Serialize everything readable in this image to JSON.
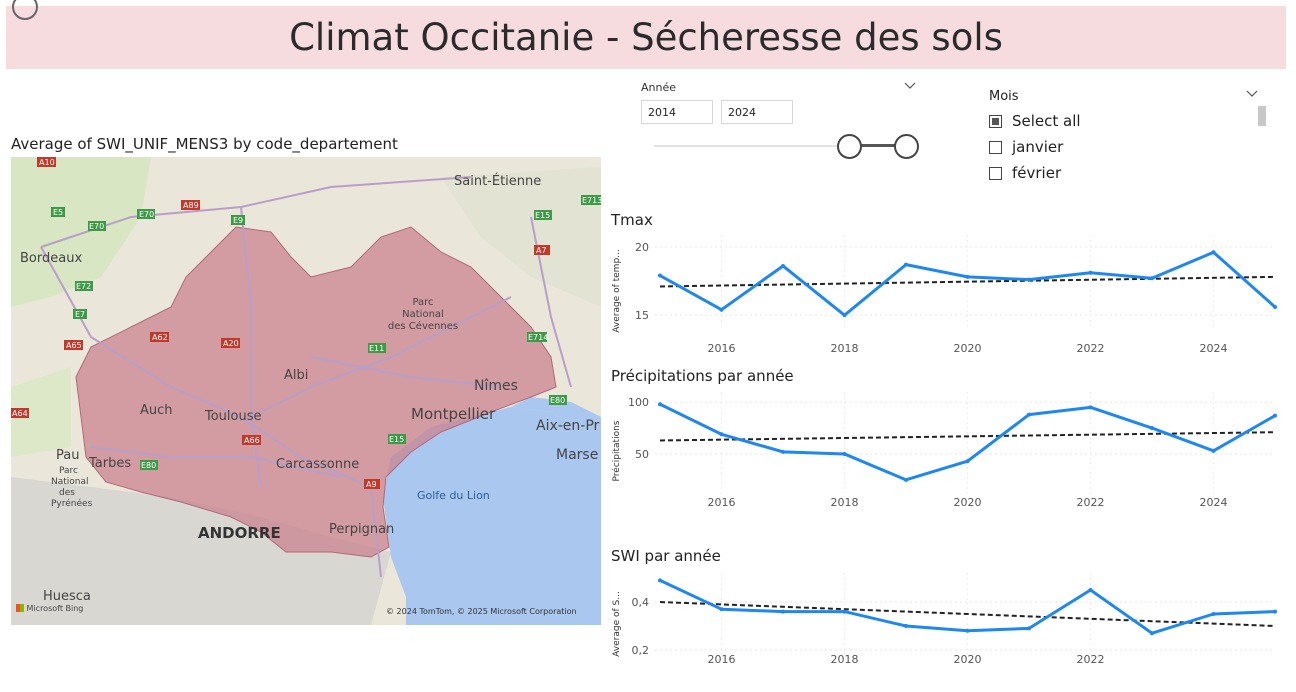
{
  "header": {
    "title": "Climat Occitanie - Sécheresse des sols"
  },
  "slicer_annee": {
    "label": "Année",
    "from": "2014",
    "to": "2024",
    "range": [
      2014,
      2024
    ]
  },
  "slicer_mois": {
    "label": "Mois",
    "items": [
      {
        "label": "Select all",
        "checked": true
      },
      {
        "label": "janvier",
        "checked": false
      },
      {
        "label": "février",
        "checked": false
      }
    ]
  },
  "map": {
    "title": "Average of SWI_UNIF_MENS3 by code_departement",
    "cities": [
      "Saint-Étienne",
      "Bordeaux",
      "Parc National des Cévennes",
      "Albi",
      "Nîmes",
      "Auch",
      "Toulouse",
      "Montpellier",
      "Aix-en-Pr",
      "Pau",
      "Tarbes",
      "Parc National des Pyrénées",
      "Carcassonne",
      "Marse",
      "Golfe du Lion",
      "ANDORRE",
      "Perpignan",
      "Huesca"
    ],
    "roads": [
      "A10",
      "E5",
      "E70",
      "A89",
      "E9",
      "E15",
      "E713",
      "A7",
      "E72",
      "E7",
      "A65",
      "A62",
      "A20",
      "E11",
      "E714",
      "E80",
      "A64",
      "A66",
      "E15",
      "A9",
      "E80"
    ],
    "brand": "Microsoft Bing",
    "copyright": "© 2024 TomTom, © 2025 Microsoft Corporation",
    "region_color": "#c9838f",
    "sea_color": "#a9c7ef"
  },
  "chart_data": [
    {
      "type": "line",
      "title": "Tmax",
      "ylabel": "Average of temp...",
      "x": [
        2015,
        2016,
        2017,
        2018,
        2019,
        2020,
        2021,
        2022,
        2023,
        2024,
        2025
      ],
      "series": [
        {
          "values": [
            17.9,
            15.4,
            18.6,
            15.0,
            18.7,
            17.8,
            17.6,
            18.1,
            17.7,
            19.6,
            15.6
          ]
        }
      ],
      "trend": [
        17.1,
        17.8
      ],
      "yticks": [
        "15",
        "20"
      ],
      "xticks": [
        "2016",
        "2018",
        "2020",
        "2022",
        "2024"
      ],
      "ylim": [
        14.5,
        20.5
      ],
      "line_color": "#1e88f0"
    },
    {
      "type": "line",
      "title": "Précipitations par année",
      "ylabel": "Précipitations",
      "x": [
        2015,
        2016,
        2017,
        2018,
        2019,
        2020,
        2021,
        2022,
        2023,
        2024,
        2025
      ],
      "series": [
        {
          "values": [
            98,
            69,
            52,
            50,
            25,
            43,
            88,
            95,
            75,
            53,
            87
          ]
        }
      ],
      "trend": [
        63,
        71
      ],
      "yticks": [
        "50",
        "100"
      ],
      "xticks": [
        "2016",
        "2018",
        "2020",
        "2022",
        "2024"
      ],
      "ylim": [
        20,
        105
      ],
      "line_color": "#1e88f0"
    },
    {
      "type": "line",
      "title": "SWI par année",
      "ylabel": "Average of S...",
      "x": [
        2015,
        2016,
        2017,
        2018,
        2019,
        2020,
        2021,
        2022,
        2023,
        2024,
        2025
      ],
      "series": [
        {
          "values": [
            0.49,
            0.37,
            0.36,
            0.36,
            0.3,
            0.28,
            0.29,
            0.45,
            0.27,
            0.35,
            0.36
          ]
        }
      ],
      "trend": [
        0.4,
        0.3
      ],
      "yticks": [
        "0,2",
        "0,4"
      ],
      "xticks": [
        "2016",
        "2018",
        "2020",
        "2022"
      ],
      "ylim": [
        0.2,
        0.5
      ],
      "line_color": "#1e88f0"
    }
  ]
}
